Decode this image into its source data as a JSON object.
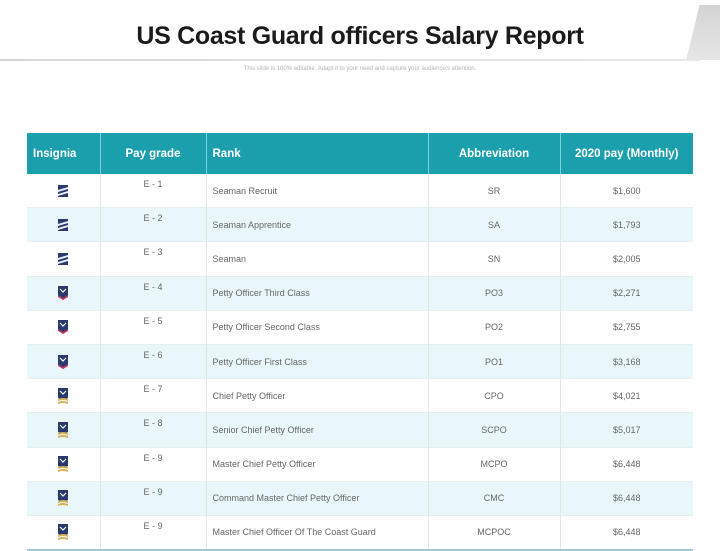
{
  "title": "US Coast Guard officers Salary Report",
  "subtitle": "This slide is 100% editable. Adapt it to your need and capture your audience's attention.",
  "colors": {
    "header": "#1c9fac",
    "alt_row": "#eaf7fa"
  },
  "table": {
    "headers": [
      "Insignia",
      "Pay grade",
      "Rank",
      "Abbreviation",
      "2020 pay (Monthly)"
    ],
    "rows": [
      {
        "insignia": "seaman-stripes-icon",
        "grade": "E - 1",
        "rank": "Seaman Recruit",
        "abbr": "SR",
        "pay": "$1,600"
      },
      {
        "insignia": "seaman-stripes-icon",
        "grade": "E - 2",
        "rank": "Seaman Apprentice",
        "abbr": "SA",
        "pay": "$1,793"
      },
      {
        "insignia": "seaman-stripes-icon",
        "grade": "E - 3",
        "rank": "Seaman",
        "abbr": "SN",
        "pay": "$2,005"
      },
      {
        "insignia": "petty-officer-chevron-icon",
        "grade": "E - 4",
        "rank": "Petty Officer Third Class",
        "abbr": "PO3",
        "pay": "$2,271"
      },
      {
        "insignia": "petty-officer-chevron-icon",
        "grade": "E - 5",
        "rank": "Petty Officer Second Class",
        "abbr": "PO2",
        "pay": "$2,755"
      },
      {
        "insignia": "petty-officer-chevron-icon",
        "grade": "E - 6",
        "rank": "Petty Officer First Class",
        "abbr": "PO1",
        "pay": "$3,168"
      },
      {
        "insignia": "chief-rocker-icon",
        "grade": "E - 7",
        "rank": "Chief Petty Officer",
        "abbr": "CPO",
        "pay": "$4,021"
      },
      {
        "insignia": "chief-rocker-icon",
        "grade": "E - 8",
        "rank": "Senior Chief Petty Officer",
        "abbr": "SCPO",
        "pay": "$5,017"
      },
      {
        "insignia": "chief-rocker-icon",
        "grade": "E - 9",
        "rank": "Master Chief Petty Officer",
        "abbr": "MCPO",
        "pay": "$6,448"
      },
      {
        "insignia": "chief-rocker-icon",
        "grade": "E - 9",
        "rank": "Command Master Chief Petty Officer",
        "abbr": "CMC",
        "pay": "$6,448"
      },
      {
        "insignia": "chief-rocker-icon",
        "grade": "E - 9",
        "rank": "Master Chief Officer Of The Coast Guard",
        "abbr": "MCPOC",
        "pay": "$6,448"
      }
    ]
  }
}
